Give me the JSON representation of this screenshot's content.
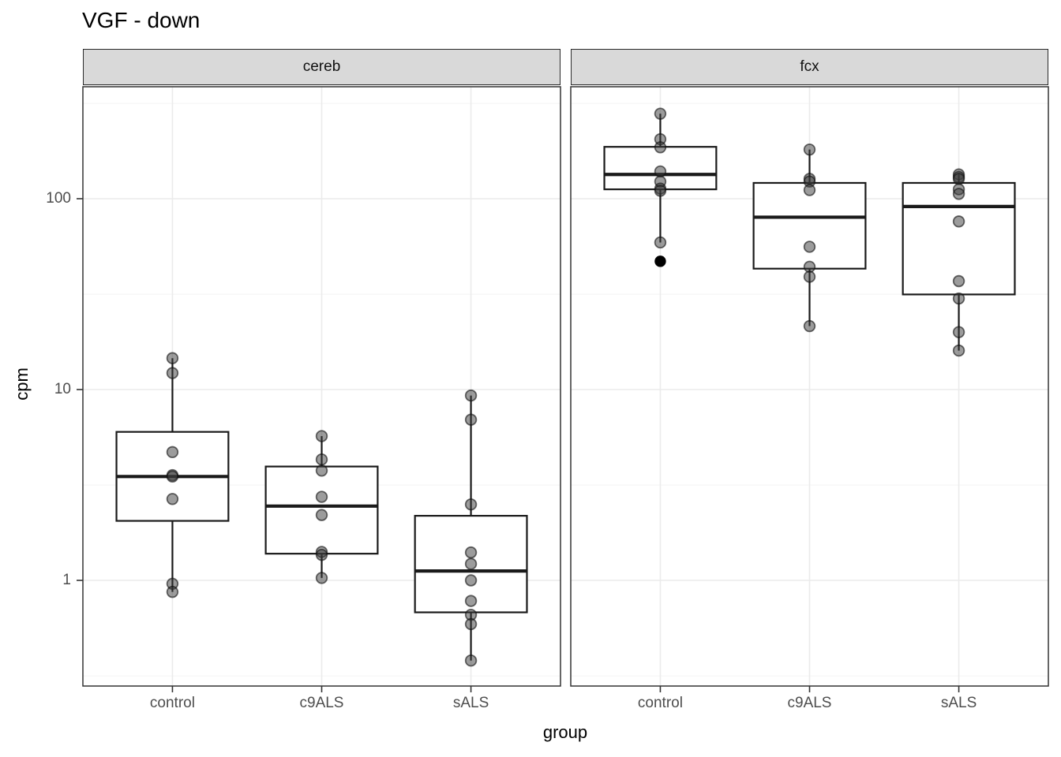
{
  "title": "VGF - down",
  "axes": {
    "x_title": "group",
    "y_title": "cpm",
    "y_tick_labels": [
      "100",
      "10",
      "1"
    ],
    "x_categories": [
      "control",
      "c9ALS",
      "sALS"
    ]
  },
  "colors": {
    "strip_bg": "#d9d9d9",
    "strip_border": "#2b2b2b",
    "panel_border": "#333333",
    "grid_major": "#ebebeb",
    "grid_minor": "#f4f4f4",
    "box_stroke": "#1a1a1a",
    "point_fill": "#3a3a3a",
    "outlier_fill": "#000000",
    "axis_text": "#4d4d4d",
    "tick_mark": "#333333",
    "title_text": "#000000"
  },
  "chart_data": {
    "type": "boxplot",
    "title": "VGF - down",
    "xlabel": "group",
    "ylabel": "cpm",
    "y_scale": "log10",
    "y_axis_ticks": [
      100,
      10,
      1
    ],
    "y_minor_gridlines": [
      316,
      31.6,
      3.16,
      0.316
    ],
    "ylim": [
      0.28,
      390
    ],
    "categories": [
      "control",
      "c9ALS",
      "sALS"
    ],
    "legend": "none",
    "facets": [
      {
        "label": "cereb",
        "groups": [
          {
            "category": "control",
            "box": {
              "q1": 2.05,
              "median": 3.5,
              "q3": 6.0,
              "whisker_low": 0.87,
              "whisker_high": 14.6
            },
            "points": [
              14.6,
              12.2,
              4.7,
              3.56,
              3.5,
              2.67,
              0.96,
              0.87
            ],
            "outliers": []
          },
          {
            "category": "c9ALS",
            "box": {
              "q1": 1.38,
              "median": 2.45,
              "q3": 3.95,
              "whisker_low": 1.03,
              "whisker_high": 5.7
            },
            "points": [
              5.7,
              4.3,
              3.76,
              2.74,
              2.2,
              1.41,
              1.36,
              1.03
            ],
            "outliers": []
          },
          {
            "category": "sALS",
            "box": {
              "q1": 0.68,
              "median": 1.12,
              "q3": 2.18,
              "whisker_low": 0.38,
              "whisker_high": 9.3
            },
            "points": [
              9.3,
              6.95,
              2.5,
              1.4,
              1.22,
              1.0,
              0.78,
              0.66,
              0.59,
              0.38
            ],
            "outliers": []
          }
        ]
      },
      {
        "label": "fcx",
        "groups": [
          {
            "category": "control",
            "box": {
              "q1": 112,
              "median": 134,
              "q3": 187,
              "whisker_low": 59,
              "whisker_high": 279
            },
            "points": [
              279,
              205,
              186,
              139,
              123,
              113,
              110,
              59
            ],
            "outliers": [
              47
            ]
          },
          {
            "category": "c9ALS",
            "box": {
              "q1": 43,
              "median": 80,
              "q3": 121,
              "whisker_low": 21.5,
              "whisker_high": 181
            },
            "points": [
              181,
              127,
              123,
              111,
              56,
              44,
              39,
              21.5
            ],
            "outliers": []
          },
          {
            "category": "sALS",
            "box": {
              "q1": 31.5,
              "median": 91,
              "q3": 121,
              "whisker_low": 16,
              "whisker_high": 134
            },
            "points": [
              134,
              130,
              127,
              112,
              106,
              76,
              37,
              30,
              20,
              16
            ],
            "outliers": []
          }
        ]
      }
    ]
  }
}
